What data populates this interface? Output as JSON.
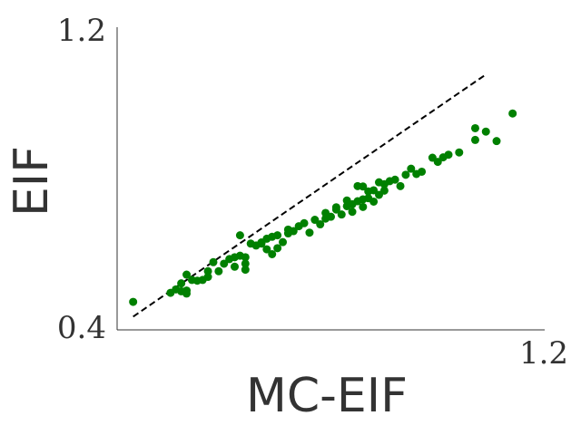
{
  "chart_data": {
    "type": "scatter",
    "title": "",
    "xlabel": "MC-EIF",
    "ylabel": "EIF",
    "xlim": [
      0.4,
      1.2
    ],
    "ylim": [
      0.4,
      1.2
    ],
    "x_ticks": [
      "0.4",
      "1.2"
    ],
    "y_ticks": [
      "0.4",
      "1.2"
    ],
    "grid": false,
    "point_color": "#008000",
    "reference_line": {
      "style": "dashed",
      "color": "#000000",
      "x": [
        0.43,
        1.09
      ],
      "y": [
        0.435,
        1.075
      ]
    },
    "series": [
      {
        "points": [
          [
            0.43,
            0.474
          ],
          [
            0.5,
            0.498
          ],
          [
            0.51,
            0.507
          ],
          [
            0.52,
            0.523
          ],
          [
            0.52,
            0.502
          ],
          [
            0.53,
            0.504
          ],
          [
            0.53,
            0.496
          ],
          [
            0.53,
            0.546
          ],
          [
            0.54,
            0.532
          ],
          [
            0.55,
            0.53
          ],
          [
            0.56,
            0.532
          ],
          [
            0.57,
            0.54
          ],
          [
            0.57,
            0.555
          ],
          [
            0.58,
            0.579
          ],
          [
            0.59,
            0.555
          ],
          [
            0.6,
            0.575
          ],
          [
            0.61,
            0.587
          ],
          [
            0.62,
            0.567
          ],
          [
            0.62,
            0.592
          ],
          [
            0.63,
            0.596
          ],
          [
            0.63,
            0.65
          ],
          [
            0.64,
            0.559
          ],
          [
            0.64,
            0.575
          ],
          [
            0.64,
            0.592
          ],
          [
            0.65,
            0.628
          ],
          [
            0.66,
            0.623
          ],
          [
            0.67,
            0.628
          ],
          [
            0.67,
            0.631
          ],
          [
            0.68,
            0.613
          ],
          [
            0.68,
            0.641
          ],
          [
            0.69,
            0.646
          ],
          [
            0.69,
            0.6
          ],
          [
            0.7,
            0.65
          ],
          [
            0.7,
            0.616
          ],
          [
            0.71,
            0.632
          ],
          [
            0.72,
            0.655
          ],
          [
            0.72,
            0.665
          ],
          [
            0.73,
            0.661
          ],
          [
            0.74,
            0.674
          ],
          [
            0.75,
            0.682
          ],
          [
            0.76,
            0.657
          ],
          [
            0.77,
            0.691
          ],
          [
            0.78,
            0.679
          ],
          [
            0.79,
            0.709
          ],
          [
            0.79,
            0.694
          ],
          [
            0.8,
            0.699
          ],
          [
            0.81,
            0.718
          ],
          [
            0.81,
            0.724
          ],
          [
            0.82,
            0.705
          ],
          [
            0.83,
            0.727
          ],
          [
            0.83,
            0.742
          ],
          [
            0.84,
            0.712
          ],
          [
            0.84,
            0.732
          ],
          [
            0.85,
            0.74
          ],
          [
            0.85,
            0.78
          ],
          [
            0.86,
            0.725
          ],
          [
            0.86,
            0.745
          ],
          [
            0.86,
            0.779
          ],
          [
            0.87,
            0.748
          ],
          [
            0.87,
            0.766
          ],
          [
            0.88,
            0.739
          ],
          [
            0.88,
            0.769
          ],
          [
            0.89,
            0.757
          ],
          [
            0.89,
            0.79
          ],
          [
            0.9,
            0.768
          ],
          [
            0.9,
            0.785
          ],
          [
            0.91,
            0.793
          ],
          [
            0.92,
            0.797
          ],
          [
            0.93,
            0.78
          ],
          [
            0.94,
            0.81
          ],
          [
            0.95,
            0.826
          ],
          [
            0.96,
            0.812
          ],
          [
            0.97,
            0.818
          ],
          [
            0.99,
            0.855
          ],
          [
            1.0,
            0.844
          ],
          [
            1.01,
            0.856
          ],
          [
            1.02,
            0.863
          ],
          [
            1.04,
            0.869
          ],
          [
            1.07,
            0.902
          ],
          [
            1.07,
            0.933
          ],
          [
            1.09,
            0.924
          ],
          [
            1.11,
            0.899
          ],
          [
            1.14,
            0.972
          ]
        ]
      }
    ]
  }
}
